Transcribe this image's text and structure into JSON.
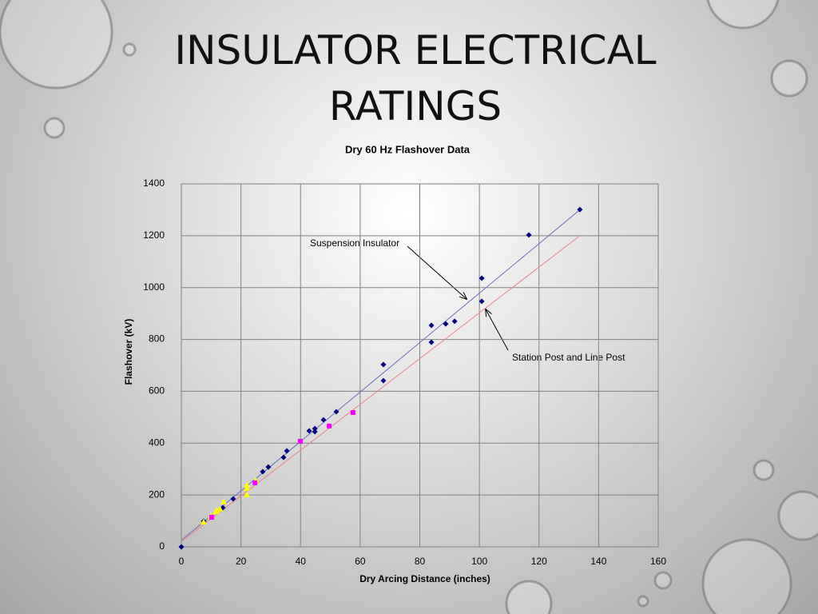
{
  "slide_title": "INSULATOR ELECTRICAL RATINGS",
  "chart_data": {
    "type": "scatter",
    "title": "Dry 60 Hz Flashover Data",
    "x_label": "Dry Arcing Distance (inches)",
    "y_label": "Flashover (kV)",
    "xlim": [
      0,
      160
    ],
    "xticks": [
      0,
      20,
      40,
      60,
      80,
      100,
      120,
      140,
      160
    ],
    "ylim": [
      0,
      1400
    ],
    "yticks": [
      0,
      200,
      400,
      600,
      800,
      1000,
      1200,
      1400
    ],
    "grid": true,
    "series": [
      {
        "mode": "markers",
        "marker": "diamond",
        "color": "#000080",
        "x": [
          0,
          7.5,
          13.9,
          17.4,
          27.3,
          29.2,
          34.3,
          35.4,
          42.9,
          44.8,
          44.8,
          47.7,
          52,
          67.8,
          67.8,
          83.9,
          83.9,
          88.7,
          91.7,
          100.8,
          100.8,
          116.6,
          133.7
        ],
        "values": [
          0,
          99,
          151,
          185,
          290,
          308,
          345,
          370,
          447,
          444,
          456,
          490,
          521,
          641,
          703,
          789,
          854,
          860,
          870,
          1036,
          947,
          1203,
          1301
        ]
      },
      {
        "mode": "markers",
        "marker": "triangle",
        "color": "#ffff00",
        "x": [
          7.5,
          9.9,
          11.5,
          12,
          13,
          14.2,
          22,
          22,
          22,
          24.9
        ],
        "values": [
          95,
          117,
          135,
          140,
          145,
          173,
          200,
          225,
          237,
          256
        ]
      },
      {
        "mode": "markers",
        "marker": "square",
        "color": "#ff00ff",
        "x": [
          10.2,
          24.7,
          39.9,
          49.6,
          57.6
        ],
        "values": [
          114,
          247,
          407,
          466,
          518
        ]
      },
      {
        "mode": "line",
        "color": "#6670b8",
        "x": [
          0,
          133.7
        ],
        "values": [
          25,
          1300
        ]
      },
      {
        "mode": "line",
        "color": "#f08080",
        "x": [
          0,
          133.7
        ],
        "values": [
          20,
          1200
        ]
      }
    ],
    "annotations": [
      "Suspension Insulator",
      "Station Post and Line Post"
    ]
  }
}
